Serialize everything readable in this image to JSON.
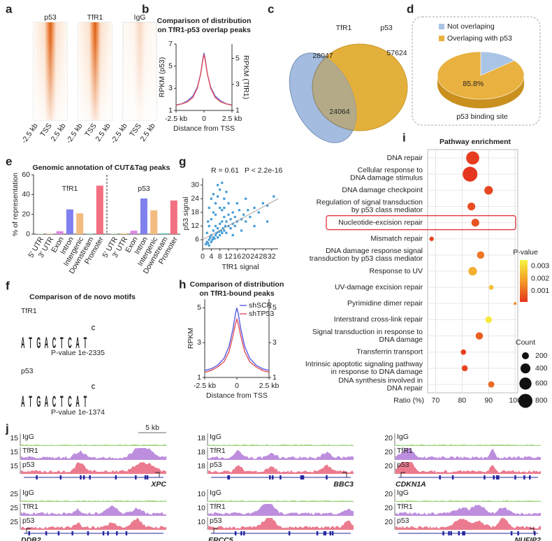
{
  "panel_labels": [
    "a",
    "b",
    "c",
    "d",
    "e",
    "f",
    "g",
    "h",
    "i",
    "j"
  ],
  "heatmap_panel": {
    "titles": [
      "p53",
      "TfR1",
      "IgG"
    ],
    "xlabels": [
      "-2.5 kb",
      "TSS",
      "2.5 kb"
    ]
  },
  "motif_panel": {
    "title": "Comparison of de novo motifs",
    "letter_colors": {
      "A": "#3a9a3a",
      "T": "#d8302a",
      "G": "#f0a020",
      "C": "#3050c8"
    },
    "motifs": [
      {
        "name": "TfR1",
        "letters": [
          "A",
          "T",
          "G",
          "A",
          "C",
          "T",
          "C",
          "A",
          "T",
          "C"
        ],
        "pvalue": "P-value 1e-2335"
      },
      {
        "name": "p53",
        "letters": [
          "A",
          "T",
          "G",
          "A",
          "C",
          "T",
          "C",
          "A",
          "T",
          "C"
        ],
        "pvalue": "P-value 1e-1374"
      }
    ]
  },
  "track_panel": {
    "tracks": [
      "IgG",
      "TfR1",
      "p53"
    ],
    "scale_bar": "5 kb",
    "colors": [
      "#93d16e",
      "#b27ad8",
      "#e8637a"
    ],
    "loci": [
      {
        "gene": "XPC",
        "scales": [
          15,
          15,
          15
        ]
      },
      {
        "gene": "BBC3",
        "scales": [
          18,
          18,
          18
        ]
      },
      {
        "gene": "CDKN1A",
        "scales": [
          20,
          20,
          20
        ]
      },
      {
        "gene": "DDB2",
        "scales": [
          25,
          25,
          25
        ]
      },
      {
        "gene": "ERCC5",
        "scales": [
          10,
          10,
          10
        ]
      },
      {
        "gene": "NUFIP2",
        "scales": [
          20,
          20,
          20
        ]
      }
    ]
  },
  "chart_data": [
    {
      "type": "line",
      "title": [
        "Comparison of distribution",
        "on TfR1-p53 overlap peaks"
      ],
      "xlabel": "Distance from TSS",
      "ylabel": "RPKM (p53)",
      "y2label": "RPKM (TfR1)",
      "x": [
        -2.5,
        -2,
        -1.5,
        -1,
        -0.6,
        -0.3,
        -0.1,
        0,
        0.1,
        0.3,
        0.6,
        1,
        1.5,
        2,
        2.5
      ],
      "series": [
        {
          "color": "#6a6ae0",
          "values": [
            1.5,
            1.6,
            1.85,
            2.3,
            3.1,
            4.3,
            5.7,
            6.2,
            5.7,
            4.3,
            3.1,
            2.3,
            1.85,
            1.6,
            1.5
          ]
        },
        {
          "color": "#e0505a",
          "axis": "y2",
          "values": [
            1.4,
            1.5,
            1.65,
            2.0,
            2.7,
            3.8,
            4.9,
            5.3,
            4.9,
            3.8,
            2.7,
            2.0,
            1.65,
            1.5,
            1.4
          ]
        }
      ],
      "xlim": [
        -2.5,
        2.5
      ],
      "xticks": [
        {
          "value": -2.5,
          "label": "-2.5 kb"
        },
        0,
        {
          "value": 2.5,
          "label": "2.5 kb"
        }
      ],
      "ylim": [
        1,
        7
      ],
      "yticks": [
        1,
        3,
        5,
        7
      ],
      "y2lim": [
        1,
        6.1
      ],
      "y2ticks": [
        1,
        3,
        5
      ]
    },
    {
      "type": "venn",
      "sets": [
        {
          "name": "TfR1",
          "color": "#a3bcdf",
          "value": 28047
        },
        {
          "name": "p53",
          "color": "#e4b03c",
          "value": 57624
        }
      ],
      "overlap": 24064,
      "overlap_color": "#b4aa88"
    },
    {
      "type": "pie",
      "title": "p53 binding site",
      "categories": [
        "Not overlaping",
        "Overlaping with p53"
      ],
      "values": [
        14.2,
        85.8
      ],
      "value_labels": [
        null,
        "85.8%"
      ],
      "colors": [
        "#a9c4e6",
        "#e9b13f"
      ]
    },
    {
      "type": "bar",
      "title": "Genomic annotation of CUT&Tag peaks",
      "ylabel": "% of representation",
      "categories": [
        "5' UTR",
        "3' UTR",
        "Exon",
        "Intron",
        "Intergenic",
        "Downstream",
        "Promoter"
      ],
      "colors": [
        "#a8d8a0",
        "#f0c060",
        "#d98ae0",
        "#8080ee",
        "#f4bb80",
        "#70d0c0",
        "#f27080"
      ],
      "series": [
        {
          "name": "TfR1",
          "values": [
            0.4,
            0.3,
            3,
            25,
            21,
            0.5,
            49
          ]
        },
        {
          "name": "p53",
          "values": [
            0.5,
            0.6,
            3.5,
            36,
            24,
            1,
            34
          ]
        }
      ],
      "ylim": [
        0,
        60
      ],
      "yticks": [
        0,
        20,
        40,
        60
      ]
    },
    {
      "type": "scatter",
      "annotations": [
        "R = 0.61",
        "P < 2.2e-16"
      ],
      "xlabel": "TfR1 signal",
      "ylabel": "p53 signal",
      "color": "#4a9fd8",
      "x": [
        1.5,
        2,
        2.5,
        3,
        3,
        3.5,
        4,
        4,
        4.5,
        5,
        5,
        5.5,
        6,
        6,
        6.5,
        7,
        7,
        7.5,
        8,
        8,
        8.5,
        9,
        9,
        9.5,
        10,
        10,
        10.5,
        11,
        11,
        12,
        12,
        13,
        13,
        14,
        14,
        15,
        15,
        16,
        17,
        18,
        19,
        20,
        21,
        22,
        24,
        26,
        28,
        30,
        33,
        2,
        3,
        4,
        5,
        6,
        7,
        8,
        9,
        10,
        11,
        12,
        3,
        5,
        7,
        9,
        2.5,
        4,
        6,
        8,
        10,
        14,
        18,
        24,
        30,
        20,
        16
      ],
      "y": [
        4,
        5,
        4.5,
        6,
        3.5,
        7,
        5,
        8,
        6,
        7,
        10,
        6.5,
        8,
        12,
        9,
        7,
        11,
        9.5,
        8,
        13,
        10,
        9,
        14,
        11,
        10,
        16,
        12,
        9,
        14,
        12,
        17,
        11,
        15,
        13,
        18,
        12,
        16,
        14,
        19,
        15,
        17,
        14,
        19,
        16,
        20,
        18,
        22,
        21,
        25,
        9,
        12,
        15,
        18,
        22,
        25,
        28,
        31,
        24,
        27,
        22,
        20,
        26,
        30,
        19,
        14,
        24,
        17,
        20,
        20,
        8,
        10,
        12,
        14,
        24,
        22
      ],
      "xlim": [
        0,
        35
      ],
      "xticks": [
        0,
        4,
        8,
        12,
        16,
        20,
        24,
        28,
        32
      ],
      "ylim": [
        2,
        33
      ],
      "yticks": [
        6,
        12,
        18,
        24,
        30
      ],
      "fit": {
        "x": [
          0,
          35
        ],
        "y": [
          6,
          24
        ],
        "color": "#999999"
      }
    },
    {
      "type": "line",
      "title": [
        "Comparison of distribution",
        "on TfR1-bound peaks"
      ],
      "xlabel": "Distance from TSS",
      "ylabel": "RPKM",
      "x": [
        -2.5,
        -2,
        -1.5,
        -1,
        -0.6,
        -0.3,
        -0.1,
        0,
        0.1,
        0.3,
        0.6,
        1,
        1.5,
        2,
        2.5
      ],
      "series": [
        {
          "name": "shSCR",
          "color": "#5a5ae0",
          "values": [
            1.4,
            1.5,
            1.7,
            2.1,
            2.8,
            3.8,
            4.7,
            5.0,
            4.7,
            3.8,
            2.8,
            2.1,
            1.7,
            1.5,
            1.4
          ]
        },
        {
          "name": "shTP53",
          "color": "#e0505a",
          "values": [
            1.3,
            1.4,
            1.6,
            1.9,
            2.5,
            3.4,
            4.1,
            4.35,
            4.1,
            3.4,
            2.5,
            1.9,
            1.6,
            1.4,
            1.3
          ]
        }
      ],
      "xlim": [
        -2.5,
        2.5
      ],
      "xticks": [
        {
          "value": -2.5,
          "label": "-2.5 kb"
        },
        0,
        {
          "value": 2.5,
          "label": "2.5 kb"
        }
      ],
      "ylim": [
        1,
        5.5
      ],
      "yticks": [
        1,
        3,
        5
      ],
      "y2lim": [
        1,
        5.5
      ],
      "y2ticks": [
        1,
        3,
        5
      ],
      "legend": "upper right"
    },
    {
      "type": "bubble",
      "title": "Pathway enrichment",
      "xlabel": "Ratio (%)",
      "categories": [
        [
          "DNA repair"
        ],
        [
          "Cellular response to",
          "DNA damage stimulus"
        ],
        [
          "DNA damage checkpoint"
        ],
        [
          "Regulation of signal transduction",
          "by p53 class mediator"
        ],
        [
          "Nucleotide-excision repair"
        ],
        [
          "Mismatch repair"
        ],
        [
          "DNA damage response signal",
          "transduction by p53 class mediator"
        ],
        [
          "Response to UV"
        ],
        [
          "UV-damage excision repair"
        ],
        [
          "Pyrimidine dimer repair"
        ],
        [
          "Interstrand cross-link repair"
        ],
        [
          "Signal transduction in response to",
          "DNA damage"
        ],
        [
          "Transferrin transport"
        ],
        [
          "Intrinsic apoptotic signaling pathway",
          "in response to DNA damage"
        ],
        [
          "DNA synthesis involved in",
          "DNA repair"
        ]
      ],
      "ratio": [
        84,
        83,
        90,
        83.5,
        85,
        68.5,
        87,
        84,
        91,
        100,
        90,
        86.5,
        80.5,
        81,
        91
      ],
      "count": [
        700,
        900,
        300,
        250,
        250,
        80,
        220,
        300,
        90,
        30,
        180,
        220,
        120,
        150,
        160
      ],
      "pvalue": [
        0.0002,
        0.0001,
        0.0004,
        0.0005,
        0.0006,
        0.0003,
        0.0012,
        0.0022,
        0.0025,
        0.0015,
        0.0033,
        0.0008,
        0.0003,
        0.0004,
        0.001
      ],
      "xlim": [
        67,
        101
      ],
      "xticks": [
        70,
        80,
        90,
        100
      ],
      "highlight": 4,
      "color_scale": {
        "title": "P-value",
        "lim": [
          0.0001,
          0.0035
        ],
        "ticks": [
          0.001,
          0.002,
          0.003
        ],
        "colors": [
          "#e5351e",
          "#f39a28",
          "#f5f540"
        ]
      },
      "size_legend": {
        "title": "Count",
        "values": [
          200,
          400,
          600,
          800
        ]
      }
    }
  ]
}
